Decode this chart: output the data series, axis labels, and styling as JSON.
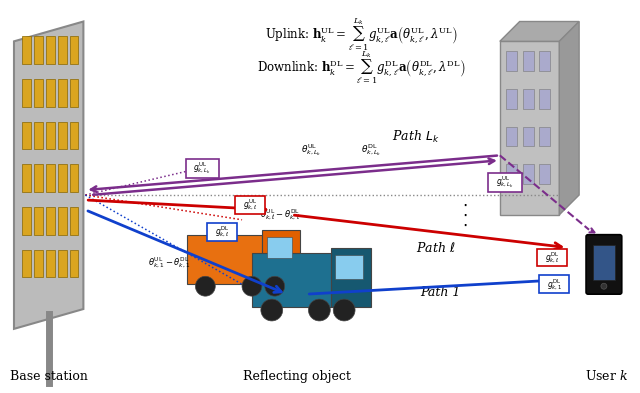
{
  "bg_color": "#ffffff",
  "uplink_formula": "Uplink: $\\mathbf{h}_k^{\\mathrm{UL}} = \\sum_{\\ell=1}^{L_k} g_{k,\\ell}^{\\mathrm{UL}}\\mathbf{a}\\left(\\theta_{k,\\ell}^{\\mathrm{UL}}, \\lambda^{\\mathrm{UL}}\\right)$",
  "downlink_formula": "Downlink: $\\mathbf{h}_k^{\\mathrm{DL}} = \\sum_{\\ell=1}^{L_k} g_{k,\\ell}^{\\mathrm{DL}}\\mathbf{a}\\left(\\theta_{k,\\ell}^{\\mathrm{DL}}, \\lambda^{\\mathrm{DL}}\\right)$",
  "label_base_station": "Base station",
  "label_reflecting": "Reflecting object",
  "label_user": "User $k$",
  "label_path_Lk": "Path $L_k$",
  "label_path_ell": "Path $\\ell$",
  "label_path_1": "Path 1",
  "purple_color": "#7B2D8B",
  "red_color": "#CC0000",
  "blue_color": "#1040CC"
}
